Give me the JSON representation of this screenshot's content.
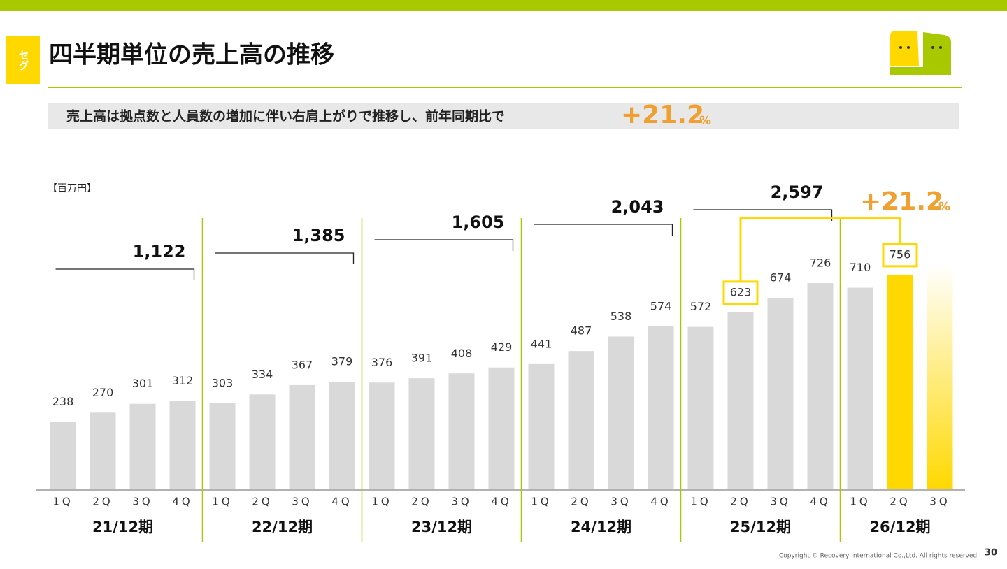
{
  "header": {
    "badge": "セグ",
    "title": "四半期単位の売上高の推移"
  },
  "subtitle": {
    "text": "売上高は拠点数と人員数の増加に伴い右肩上がりで推移し、前年同期比で",
    "growth_label": "+21.2",
    "growth_unit": "%"
  },
  "chart_data": {
    "type": "bar",
    "unit": "【百万円】",
    "categories": [
      "1Q",
      "2Q",
      "3Q",
      "4Q",
      "1Q",
      "2Q",
      "3Q",
      "4Q",
      "1Q",
      "2Q",
      "3Q",
      "4Q",
      "1Q",
      "2Q",
      "3Q",
      "4Q",
      "1Q",
      "2Q",
      "3Q",
      "4Q",
      "1Q",
      "2Q",
      "3Q"
    ],
    "values": [
      238,
      270,
      301,
      312,
      303,
      334,
      367,
      379,
      376,
      391,
      408,
      429,
      441,
      487,
      538,
      574,
      572,
      623,
      674,
      726,
      710,
      756,
      null
    ],
    "color": "#d9d9d9",
    "highlight_color": "#ffd800",
    "ylim": [
      0,
      800
    ],
    "groups": [
      {
        "label": "21/12期",
        "total": 1122,
        "total_label": "1,122"
      },
      {
        "label": "22/12期",
        "total": 1385,
        "total_label": "1,385"
      },
      {
        "label": "23/12期",
        "total": 1605,
        "total_label": "1,605"
      },
      {
        "label": "24/12期",
        "total": 2043,
        "total_label": "2,043"
      },
      {
        "label": "25/12期",
        "total": 2597,
        "total_label": "2,597"
      },
      {
        "label": "26/12期"
      }
    ],
    "growth": {
      "value": 21.2,
      "label": "+21.2",
      "unit": "%"
    }
  },
  "footer": {
    "copyright": "Copyright © Recovery International Co.,Ltd. All rights reserved.",
    "page": "30"
  }
}
